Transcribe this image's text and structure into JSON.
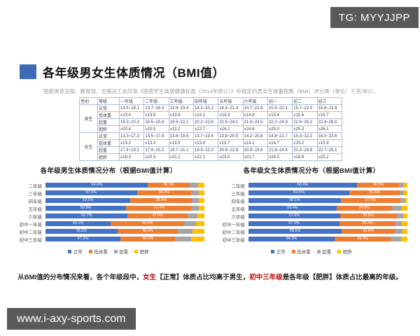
{
  "watermarks": {
    "telegram": "TG: MYYJJPP",
    "site": "www.i-axy-sports.com"
  },
  "header": {
    "title": "各年级男女生体质情况（BMI值）",
    "subtitle": "国家体育总局、教育部、全国总工会印发《国家学生体质健康标准（2014年修订）》中规定的男女生体重指数（BMI）评分表（单位：千克/米2）。"
  },
  "table": {
    "headers": [
      "性别",
      "等级",
      "一年级",
      "二年级",
      "三年级",
      "四年级",
      "五年级",
      "六年级",
      "初一",
      "初二",
      "初三"
    ],
    "groups": [
      {
        "gender": "男生",
        "rows": [
          {
            "level": "正常",
            "values": [
              "13.5~18.1",
              "13.7~18.4",
              "13.9~19.4",
              "14.2~20.1",
              "14.4~21.4",
              "14.7~21.8",
              "15.5~22.1",
              "15.7~22.5",
              "15.8~22.8"
            ]
          },
          {
            "level": "低体重",
            "values": [
              "≤13.4",
              "≤13.6",
              "≤13.8",
              "≤14.1",
              "≤14.3",
              "≤14.6",
              "≤15.4",
              "≤15.6",
              "≤15.7"
            ]
          },
          {
            "level": "超重",
            "values": [
              "18.2~20.3",
              "18.5~20.4",
              "19.5~22.1",
              "20.2~22.6",
              "21.5~24.1",
              "21.9~24.5",
              "22.2~24.9",
              "22.6~25.2",
              "22.9~26.0"
            ]
          },
          {
            "level": "肥胖",
            "values": [
              "≥20.4",
              "≥20.5",
              "≥22.2",
              "≥22.7",
              "≥24.2",
              "≥24.6",
              "≥25.0",
              "≥25.3",
              "≥26.1"
            ]
          }
        ]
      },
      {
        "gender": "女生",
        "rows": [
          {
            "level": "正常",
            "values": [
              "13.3~17.3",
              "13.5~17.8",
              "13.6~18.6",
              "13.7~19.4",
              "13.8~20.5",
              "14.2~20.8",
              "14.8~21.7",
              "15.3~22.2",
              "16.0~22.6"
            ]
          },
          {
            "level": "低体重",
            "values": [
              "≤13.2",
              "≤13.4",
              "≤13.5",
              "≤13.6",
              "≤13.7",
              "≤14.1",
              "≤14.7",
              "≤15.2",
              "≤15.9"
            ]
          },
          {
            "level": "超重",
            "values": [
              "17.4~19.2",
              "17.9~20.2",
              "18.7~21.1",
              "19.5~22.0",
              "20.6~22.9",
              "20.9~23.6",
              "21.8~24.4",
              "22.3~24.8",
              "22.7~25.1"
            ]
          },
          {
            "level": "肥胖",
            "values": [
              "≥19.3",
              "≥20.3",
              "≥21.2",
              "≥22.1",
              "≥23.0",
              "≥23.7",
              "≥24.5",
              "≥24.9",
              "≥25.2"
            ]
          }
        ]
      }
    ]
  },
  "chart_data": [
    {
      "type": "bar",
      "orientation": "horizontal-stacked",
      "title": "各年级男生体质情况分布（根据BMI值计算）",
      "categories": [
        "二年级",
        "三年级",
        "四年级",
        "五年级",
        "六年级",
        "初中一年级",
        "初中二年级",
        "初中三年级"
      ],
      "series": [
        {
          "name": "正常",
          "color": "#4472C4",
          "labeled": true,
          "values": [
            64.4,
            57.5,
            53.5,
            50.8,
            51.7,
            41.1,
            45.3,
            47.2
          ]
        },
        {
          "name": "低体重",
          "color": "#ED7D31",
          "labeled": true,
          "values": [
            26.3,
            34.3,
            38.6,
            41.4,
            37.6,
            46.2,
            38.0,
            34.5
          ]
        },
        {
          "name": "超重",
          "color": "#A5A5A5",
          "labeled": false,
          "values": [
            5.4,
            4.6,
            4.4,
            4.3,
            6.2,
            7.6,
            9.2,
            10.0
          ]
        },
        {
          "name": "肥胖",
          "color": "#FFC000",
          "labeled": false,
          "values": [
            3.9,
            3.6,
            3.5,
            3.5,
            4.5,
            5.1,
            7.5,
            8.3
          ]
        }
      ],
      "xlim": [
        0,
        100
      ],
      "legend_position": "bottom"
    },
    {
      "type": "bar",
      "orientation": "horizontal-stacked",
      "title": "各年级女生体质情况分布（根据BMI值计算）",
      "categories": [
        "二年级",
        "三年级",
        "四年级",
        "五年级",
        "六年级",
        "初中一年级",
        "初中二年级",
        "初中三年级"
      ],
      "series": [
        {
          "name": "正常",
          "color": "#4472C4",
          "labeled": true,
          "values": [
            68.4,
            63.5,
            58.1,
            55.4,
            57.6,
            57.3,
            58.6,
            54.2
          ]
        },
        {
          "name": "低体重",
          "color": "#ED7D31",
          "labeled": true,
          "values": [
            26.5,
            31.5,
            37.4,
            34.8,
            35.6,
            35.2,
            33.5,
            35.4
          ]
        },
        {
          "name": "超重",
          "color": "#A5A5A5",
          "labeled": false,
          "values": [
            2.9,
            3.0,
            2.6,
            6.5,
            4.0,
            4.2,
            5.0,
            6.6
          ]
        },
        {
          "name": "肥胖",
          "color": "#FFC000",
          "labeled": false,
          "values": [
            2.2,
            2.0,
            1.9,
            3.3,
            2.8,
            3.3,
            2.9,
            3.8
          ]
        }
      ],
      "xlim": [
        0,
        100
      ],
      "legend_position": "bottom"
    }
  ],
  "legend": [
    "正常",
    "低体重",
    "超重",
    "肥胖"
  ],
  "colors": {
    "normal": "#4472C4",
    "underweight": "#ED7D31",
    "overweight": "#A5A5A5",
    "obese": "#FFC000",
    "accent_square": "#3d6cb4",
    "dark_box": "#58595b",
    "highlight_red": "#c00000"
  },
  "summary": {
    "segments": [
      {
        "text": "从BMI值的分布情况来看，各个年级段中，",
        "red": false
      },
      {
        "text": "女生",
        "red": true
      },
      {
        "text": "【正常】体质占比均高于男生，",
        "red": false
      },
      {
        "text": "初中三年级",
        "red": true
      },
      {
        "text": "是各年级【肥胖】体质占比最高的年级。",
        "red": false
      }
    ]
  }
}
